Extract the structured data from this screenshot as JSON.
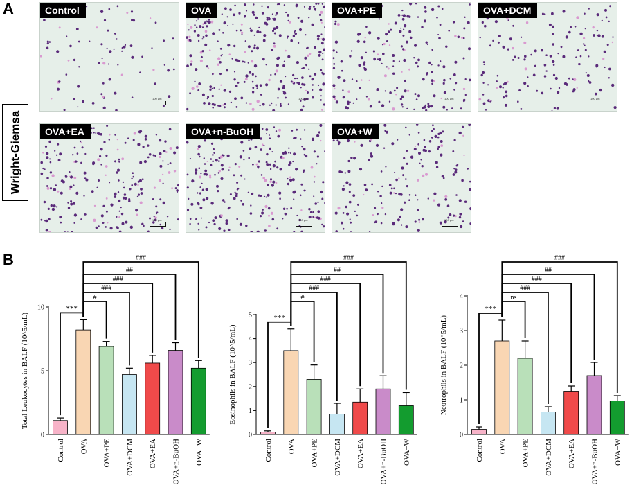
{
  "figure": {
    "panel_a_letter": "A",
    "panel_b_letter": "B",
    "stain_label": "Wright-Giemsa",
    "micrographs": [
      {
        "label": "Control",
        "density": 0.15
      },
      {
        "label": "OVA",
        "density": 1.0
      },
      {
        "label": "OVA+PE",
        "density": 0.62
      },
      {
        "label": "OVA+DCM",
        "density": 0.4
      },
      {
        "label": "OVA+EA",
        "density": 0.72
      },
      {
        "label": "OVA+n-BuOH",
        "density": 0.85
      },
      {
        "label": "OVA+W",
        "density": 0.55
      }
    ],
    "scale_bar_text": "100 μm"
  },
  "colors": {
    "Control": "#f7b3c8",
    "OVA": "#f9d6b3",
    "OVA+PE": "#b9e0b9",
    "OVA+DCM": "#c6e6f2",
    "OVA+EA": "#f04a4a",
    "OVA+n-BuOH": "#c98bc9",
    "OVA+W": "#139c2f",
    "cell_purple": "#5a2a7a",
    "cell_pink": "#d99ad0"
  },
  "chart_data": [
    {
      "type": "bar",
      "categories": [
        "Control",
        "OVA",
        "OVA+PE",
        "OVA+DCM",
        "OVA+EA",
        "OVA+n-BuOH",
        "OVA+W"
      ],
      "values": [
        1.1,
        8.2,
        6.9,
        4.7,
        5.6,
        6.6,
        5.2
      ],
      "errors": [
        0.2,
        0.8,
        0.4,
        0.5,
        0.6,
        0.6,
        0.6
      ],
      "ylabel": "Total Leukocytes in BALF (10^5/mL)",
      "ylim": [
        0,
        10
      ],
      "yticks": [
        0,
        5,
        10
      ],
      "comparisons": [
        {
          "to": "Control",
          "mark": "***"
        },
        {
          "to": "OVA+PE",
          "mark": "#"
        },
        {
          "to": "OVA+DCM",
          "mark": "###"
        },
        {
          "to": "OVA+EA",
          "mark": "###"
        },
        {
          "to": "OVA+n-BuOH",
          "mark": "##"
        },
        {
          "to": "OVA+W",
          "mark": "###"
        }
      ]
    },
    {
      "type": "bar",
      "categories": [
        "Control",
        "OVA",
        "OVA+PE",
        "OVA+DCM",
        "OVA+EA",
        "OVA+n-BuOH",
        "OVA+W"
      ],
      "values": [
        0.1,
        3.5,
        2.3,
        0.85,
        1.35,
        1.9,
        1.2
      ],
      "errors": [
        0.05,
        0.9,
        0.6,
        0.45,
        0.55,
        0.55,
        0.55
      ],
      "ylabel": "Eosinophils in BALF (10^5/mL)",
      "ylim": [
        0,
        5
      ],
      "yticks": [
        0,
        1,
        2,
        3,
        4,
        5
      ],
      "comparisons": [
        {
          "to": "Control",
          "mark": "***"
        },
        {
          "to": "OVA+PE",
          "mark": "#"
        },
        {
          "to": "OVA+DCM",
          "mark": "###"
        },
        {
          "to": "OVA+EA",
          "mark": "###"
        },
        {
          "to": "OVA+n-BuOH",
          "mark": "##"
        },
        {
          "to": "OVA+W",
          "mark": "###"
        }
      ]
    },
    {
      "type": "bar",
      "categories": [
        "Control",
        "OVA",
        "OVA+PE",
        "OVA+DCM",
        "OVA+EA",
        "OVA+n-BuOH",
        "OVA+W"
      ],
      "values": [
        0.15,
        2.7,
        2.2,
        0.65,
        1.25,
        1.7,
        0.97
      ],
      "errors": [
        0.07,
        0.6,
        0.5,
        0.15,
        0.15,
        0.38,
        0.15
      ],
      "ylabel": "Neutrophils in BALF (10^5/mL)",
      "ylim": [
        0,
        4
      ],
      "yticks": [
        0,
        1,
        2,
        3,
        4
      ],
      "comparisons": [
        {
          "to": "Control",
          "mark": "***"
        },
        {
          "to": "OVA+PE",
          "mark": "ns"
        },
        {
          "to": "OVA+DCM",
          "mark": "###"
        },
        {
          "to": "OVA+EA",
          "mark": "###"
        },
        {
          "to": "OVA+n-BuOH",
          "mark": "##"
        },
        {
          "to": "OVA+W",
          "mark": "###"
        }
      ]
    }
  ]
}
